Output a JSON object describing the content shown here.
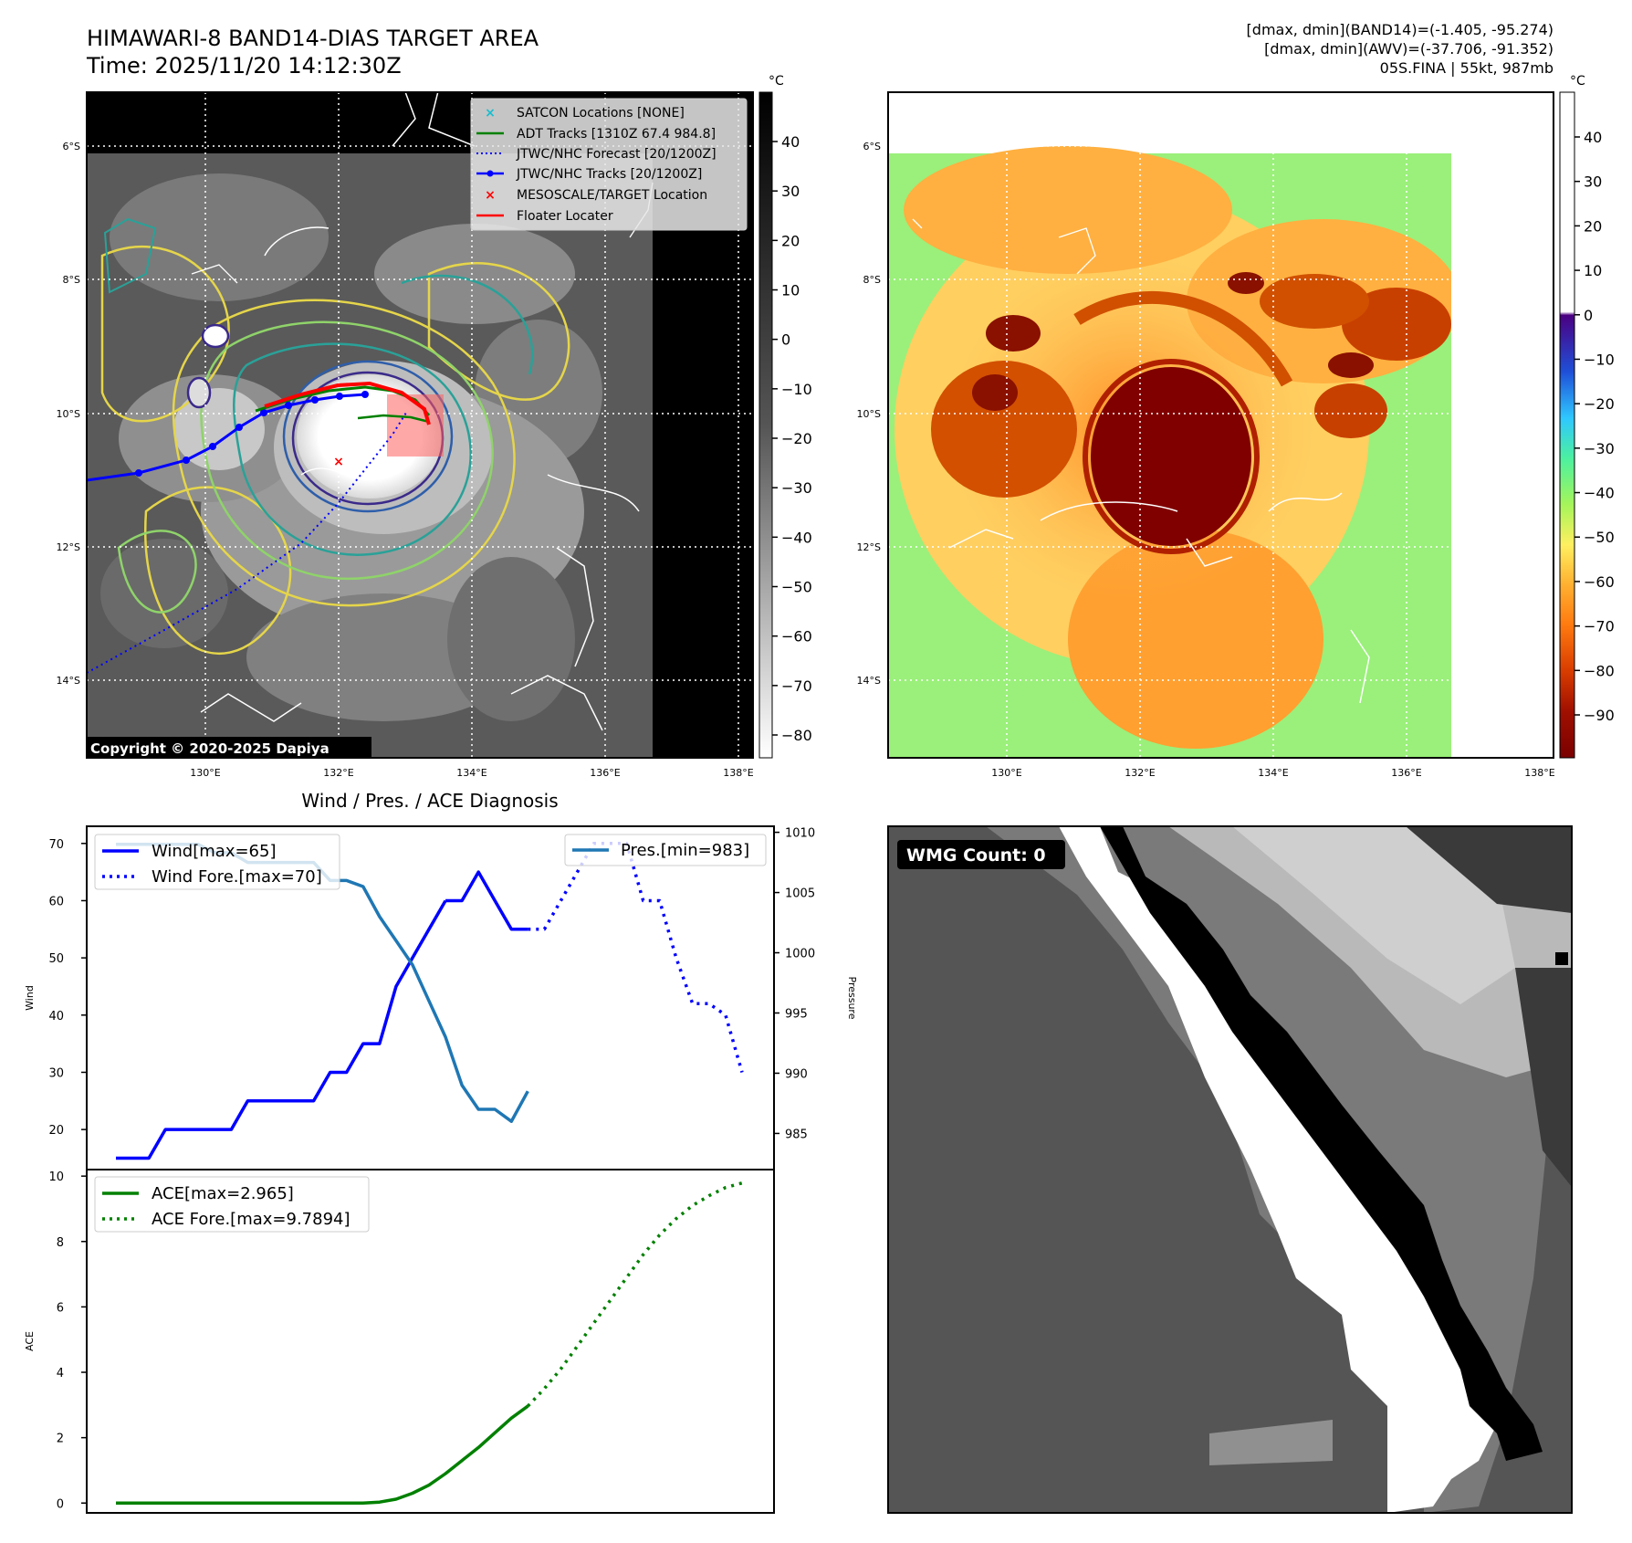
{
  "header": {
    "title_line1": "HIMAWARI-8 BAND14-DIAS TARGET AREA",
    "title_line2": "Time: 2025/11/20 14:12:30Z",
    "info_line1": "[dmax, dmin](BAND14)=(-1.405, -95.274)",
    "info_line2": "[dmax, dmin](AWV)=(-37.706, -91.352)",
    "info_line3": "05S.FINA | 55kt, 987mb"
  },
  "map_axes": {
    "lat_labels": [
      "6°S",
      "8°S",
      "10°S",
      "12°S",
      "14°S"
    ],
    "lon_labels": [
      "130°E",
      "132°E",
      "134°E",
      "136°E",
      "138°E"
    ],
    "copyright": "Copyright © 2020-2025 Dapiya"
  },
  "ir_colorbar": {
    "unit": "°C",
    "ticks": [
      "40",
      "30",
      "20",
      "10",
      "0",
      "−10",
      "−20",
      "−30",
      "−40",
      "−50",
      "−60",
      "−70",
      "−80"
    ]
  },
  "wv_colorbar": {
    "unit": "°C",
    "ticks": [
      "40",
      "30",
      "20",
      "10",
      "0",
      "−10",
      "−20",
      "−30",
      "−40",
      "−50",
      "−60",
      "−70",
      "−80",
      "−90"
    ]
  },
  "map_legend": [
    {
      "label": "SATCON Locations [NONE]",
      "color": "#17becf",
      "marker": "x"
    },
    {
      "label": "ADT Tracks [1310Z 67.4 984.8]",
      "color": "#008000",
      "marker": "line"
    },
    {
      "label": "JTWC/NHC Forecast [20/1200Z]",
      "color": "#0000ff",
      "marker": "dotted"
    },
    {
      "label": "JTWC/NHC Tracks [20/1200Z]",
      "color": "#0000ff",
      "marker": "line-dot"
    },
    {
      "label": "MESOSCALE/TARGET Location",
      "color": "#ff0000",
      "marker": "x"
    },
    {
      "label": "Floater Locater",
      "color": "#ff0000",
      "marker": "line"
    }
  ],
  "diag_title": "Wind / Pres. / ACE Diagnosis",
  "wmg": {
    "label": "WMG Count: 0"
  },
  "chart_data": [
    {
      "type": "line",
      "title": "Wind / Pres. / ACE Diagnosis",
      "ylabel": "Wind",
      "y2label": "Pressure",
      "ylim": [
        13,
        73
      ],
      "y2lim": [
        982,
        1010.5
      ],
      "yticks": [
        "20",
        "30",
        "40",
        "50",
        "60",
        "70"
      ],
      "y2ticks": [
        "985",
        "990",
        "995",
        "1000",
        "1005",
        "1010"
      ],
      "legend_left": [
        {
          "label": "Wind[max=65]",
          "style": "solid",
          "color": "#0000ff"
        },
        {
          "label": "Wind Fore.[max=70]",
          "style": "dotted",
          "color": "#0000ff"
        }
      ],
      "legend_right": [
        {
          "label": "Pres.[min=983]",
          "style": "solid",
          "color": "#1f77b4"
        }
      ],
      "series": [
        {
          "name": "Wind[max=65]",
          "axis": "left",
          "style": "solid",
          "color": "#0000ff",
          "x": [
            0,
            1,
            2,
            3,
            4,
            5,
            6,
            7,
            8,
            9,
            10,
            11,
            12,
            13,
            14,
            15,
            16,
            17,
            18,
            19,
            20
          ],
          "y": [
            15,
            15,
            15,
            20,
            20,
            20,
            20,
            20,
            25,
            25,
            25,
            25,
            25,
            30,
            30,
            35,
            35,
            45,
            50,
            55,
            60
          ]
        },
        {
          "name": "Wind[max=65]",
          "axis": "left",
          "style": "solid",
          "color": "#0000ff",
          "x": [
            20,
            21,
            22,
            23,
            24,
            25
          ],
          "y": [
            60,
            60,
            65,
            60,
            55,
            55
          ]
        },
        {
          "name": "Wind Fore.[max=70]",
          "axis": "left",
          "style": "dotted",
          "color": "#0000ff",
          "x": [
            25,
            26,
            27,
            28,
            29,
            30,
            31,
            32,
            33,
            34,
            35,
            36,
            37,
            38
          ],
          "y": [
            55,
            55,
            60,
            65,
            70,
            70,
            70,
            60,
            60,
            50,
            42,
            42,
            40,
            30
          ]
        },
        {
          "name": "Pres.[min=983]",
          "axis": "right",
          "style": "solid",
          "color": "#1f77b4",
          "x": [
            0,
            1,
            2,
            3,
            4,
            5,
            6,
            7,
            8,
            9,
            10,
            11,
            12,
            13,
            14,
            15,
            16,
            17,
            18,
            19,
            20,
            21,
            22,
            23,
            24,
            25
          ],
          "y": [
            1009,
            1009,
            1009,
            1009,
            1009,
            1009,
            1008.3,
            1008.3,
            1007.5,
            1007.5,
            1007.5,
            1007.5,
            1007.5,
            1006,
            1006,
            1005.5,
            1003,
            1001,
            999,
            996,
            993,
            989,
            987,
            987,
            986,
            988.5
          ]
        }
      ]
    },
    {
      "type": "line",
      "ylabel": "ACE",
      "ylim": [
        -0.3,
        10.2
      ],
      "yticks": [
        "0",
        "2",
        "4",
        "6",
        "8",
        "10"
      ],
      "legend": [
        {
          "label": "ACE[max=2.965]",
          "style": "solid",
          "color": "#008000"
        },
        {
          "label": "ACE Fore.[max=9.7894]",
          "style": "dotted",
          "color": "#008000"
        }
      ],
      "series": [
        {
          "name": "ACE[max=2.965]",
          "style": "solid",
          "color": "#008000",
          "x": [
            0,
            4,
            8,
            12,
            14,
            15,
            16,
            17,
            18,
            19,
            20,
            21,
            22,
            23,
            24,
            25
          ],
          "y": [
            0,
            0,
            0,
            0,
            0,
            0,
            0.03,
            0.12,
            0.3,
            0.55,
            0.9,
            1.3,
            1.7,
            2.15,
            2.6,
            2.965
          ]
        },
        {
          "name": "ACE Fore.[max=9.7894]",
          "style": "dotted",
          "color": "#008000",
          "x": [
            25,
            26,
            27,
            28,
            29,
            30,
            31,
            32,
            33,
            34,
            35,
            36,
            37,
            38
          ],
          "y": [
            2.965,
            3.5,
            4.1,
            4.8,
            5.5,
            6.2,
            6.9,
            7.6,
            8.2,
            8.7,
            9.1,
            9.4,
            9.65,
            9.79
          ]
        }
      ]
    }
  ]
}
